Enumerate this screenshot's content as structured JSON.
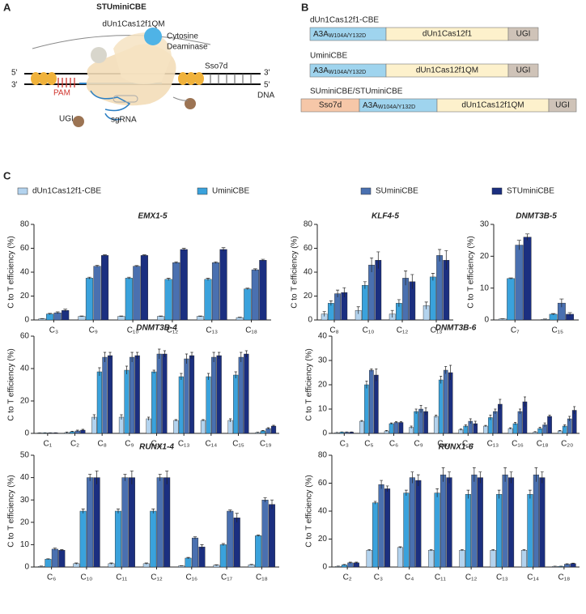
{
  "panel_a": {
    "label": "A",
    "title": "STUminiCBE",
    "cas": "dUn1Cas12f1QM",
    "deaminase": [
      "Cytosine",
      "Deaminase"
    ],
    "sso7d": "Sso7d",
    "strand_ends": [
      "5'",
      "3'",
      "3'",
      "5'"
    ],
    "pam": "PAM",
    "dna": "DNA",
    "ugi": "UGI",
    "sgrna": "sgRNA"
  },
  "panel_b": {
    "label": "B",
    "constructs": [
      {
        "name": "dUn1Cas12f1-CBE",
        "domains": [
          {
            "text": "A3A",
            "sub": "W104A/Y132D",
            "color": "#9fd4ee"
          },
          {
            "text": "dUn1Cas12f1",
            "color": "#fdf1cc"
          },
          {
            "text": "UGI",
            "color": "#cfc3b8"
          }
        ]
      },
      {
        "name": "UminiCBE",
        "domains": [
          {
            "text": "A3A",
            "sub": "W104A/Y132D",
            "color": "#9fd4ee"
          },
          {
            "text": "dUn1Cas12f1QM",
            "color": "#fdf1cc"
          },
          {
            "text": "UGI",
            "color": "#cfc3b8"
          }
        ]
      },
      {
        "name": "SUminiCBE/STUminiCBE",
        "domains": [
          {
            "text": "Sso7d",
            "color": "#f6c7a8"
          },
          {
            "text": "A3A",
            "sub": "W104A/Y132D",
            "color": "#9fd4ee"
          },
          {
            "text": "dUn1Cas12f1QM",
            "color": "#fdf1cc"
          },
          {
            "text": "UGI",
            "color": "#cfc3b8"
          }
        ]
      }
    ]
  },
  "panel_c": {
    "label": "C"
  },
  "legend": [
    {
      "name": "dUn1Cas12f1-CBE",
      "color": "#b3d3ee"
    },
    {
      "name": "UminiCBE",
      "color": "#3aa2dc"
    },
    {
      "name": "SUminiCBE",
      "color": "#4a70b0"
    },
    {
      "name": "STUminiCBE",
      "color": "#1b2f80"
    }
  ],
  "chart_data": [
    {
      "type": "bar",
      "title": "EMX1-5",
      "ylabel": "C to T efficiency (%)",
      "ylim": [
        0,
        80
      ],
      "yticks": [
        0,
        20,
        40,
        60,
        80
      ],
      "categories": [
        "C₃",
        "C₉",
        "C₁₀",
        "C₁₂",
        "C₁₃",
        "C₁₈"
      ],
      "series": [
        {
          "values": [
            1,
            3,
            3,
            3,
            3,
            2
          ],
          "errors": [
            0.2,
            0.3,
            0.3,
            0.3,
            0.3,
            0.3
          ]
        },
        {
          "values": [
            5,
            35,
            35,
            34,
            34,
            26
          ],
          "errors": [
            0.5,
            0.8,
            0.8,
            1,
            1,
            0.6
          ]
        },
        {
          "values": [
            6,
            45,
            45,
            48,
            48,
            42
          ],
          "errors": [
            0.8,
            0.8,
            0.5,
            0.7,
            0.7,
            0.8
          ]
        },
        {
          "values": [
            8,
            54,
            54,
            59,
            59,
            50
          ],
          "errors": [
            1,
            0.5,
            0.5,
            1,
            1.5,
            0.8
          ]
        }
      ]
    },
    {
      "type": "bar",
      "title": "KLF4-5",
      "ylabel": "C to T efficiency (%)",
      "ylim": [
        0,
        80
      ],
      "yticks": [
        0,
        20,
        40,
        60,
        80
      ],
      "categories": [
        "C₈",
        "C₁₀",
        "C₁₂",
        "C₁₃"
      ],
      "series": [
        {
          "values": [
            5,
            8,
            5,
            12
          ],
          "errors": [
            2,
            3,
            3,
            3
          ]
        },
        {
          "values": [
            14,
            29,
            14,
            36
          ],
          "errors": [
            2,
            3,
            3,
            3
          ]
        },
        {
          "values": [
            22,
            46,
            35,
            54
          ],
          "errors": [
            3,
            6,
            6,
            5
          ]
        },
        {
          "values": [
            23,
            50,
            32,
            50
          ],
          "errors": [
            4,
            7,
            6,
            8
          ]
        }
      ]
    },
    {
      "type": "bar",
      "title": "DNMT3B-5",
      "ylabel": "C to T efficiency (%)",
      "ylim": [
        0,
        30
      ],
      "yticks": [
        0,
        10,
        20,
        30
      ],
      "categories": [
        "C₇",
        "C₁₅"
      ],
      "series": [
        {
          "values": [
            0.3,
            0.2
          ],
          "errors": [
            0.1,
            0.1
          ]
        },
        {
          "values": [
            13,
            1.8
          ],
          "errors": [
            0.2,
            0.2
          ]
        },
        {
          "values": [
            23.5,
            5.3
          ],
          "errors": [
            1.5,
            1.3
          ]
        },
        {
          "values": [
            26,
            1.8
          ],
          "errors": [
            1,
            0.5
          ]
        }
      ]
    },
    {
      "type": "bar",
      "title": "DNMT3B-4",
      "ylabel": "C to T efficiency (%)",
      "ylim": [
        0,
        60
      ],
      "yticks": [
        0,
        20,
        40,
        60
      ],
      "categories": [
        "C₁",
        "C₂",
        "C₈",
        "C₉",
        "C₁₁",
        "C₁₃",
        "C₁₄",
        "C₁₅",
        "C₁₉"
      ],
      "series": [
        {
          "values": [
            0.3,
            0.5,
            10,
            10,
            9,
            8,
            8,
            8,
            0.5
          ],
          "errors": [
            0.1,
            0.3,
            1.5,
            1.5,
            1,
            0.5,
            0.5,
            1,
            0.2
          ]
        },
        {
          "values": [
            0.3,
            1,
            38,
            39,
            38,
            35,
            35,
            36,
            1.5
          ],
          "errors": [
            0.1,
            0.3,
            2.5,
            2.5,
            1,
            2,
            2,
            2,
            0.3
          ]
        },
        {
          "values": [
            0.3,
            1.5,
            47,
            47,
            49,
            46,
            47,
            47,
            3
          ],
          "errors": [
            0.1,
            0.5,
            3,
            3,
            3,
            3,
            3,
            3,
            0.5
          ]
        },
        {
          "values": [
            0.3,
            2,
            48,
            48,
            49,
            48,
            48,
            49,
            4.5
          ],
          "errors": [
            0.1,
            0.5,
            2,
            2,
            2,
            2,
            2,
            2,
            0.5
          ]
        }
      ]
    },
    {
      "type": "bar",
      "title": "DNMT3B-6",
      "ylabel": "C to T efficiency (%)",
      "ylim": [
        0,
        40
      ],
      "yticks": [
        0,
        10,
        20,
        30,
        40
      ],
      "categories": [
        "C₃",
        "C₅",
        "C₆",
        "C₉",
        "C₁₀",
        "C₁₂",
        "C₁₃",
        "C₁₆",
        "C₁₈",
        "C₂₀"
      ],
      "series": [
        {
          "values": [
            0.3,
            5,
            1,
            2.5,
            7,
            1.5,
            3,
            2,
            0.5,
            1
          ],
          "errors": [
            0.1,
            0.3,
            0.2,
            0.5,
            0.5,
            0.3,
            0.3,
            0.3,
            0.2,
            0.2
          ]
        },
        {
          "values": [
            0.5,
            20,
            4,
            9,
            22,
            3,
            6.5,
            4,
            2,
            3
          ],
          "errors": [
            0.1,
            1.5,
            0.3,
            1,
            1.5,
            0.5,
            1,
            0.5,
            0.5,
            0.5
          ]
        },
        {
          "values": [
            0.5,
            26,
            4.5,
            10,
            26,
            5,
            9,
            9,
            3.5,
            6
          ],
          "errors": [
            0.1,
            0.5,
            0.3,
            1.5,
            1.5,
            1,
            1,
            1,
            0.8,
            1
          ]
        },
        {
          "values": [
            0.5,
            24,
            4.5,
            9,
            25,
            4,
            12,
            13,
            7,
            9.5
          ],
          "errors": [
            0.1,
            2.5,
            0.3,
            1.5,
            3,
            1,
            2,
            2,
            0.5,
            1.5
          ]
        }
      ]
    },
    {
      "type": "bar",
      "title": "RUNX1-4",
      "ylabel": "C to T efficiency (%)",
      "ylim": [
        0,
        50
      ],
      "yticks": [
        0,
        10,
        20,
        30,
        40,
        50
      ],
      "categories": [
        "C₆",
        "C₁₀",
        "C₁₁",
        "C₁₂",
        "C₁₆",
        "C₁₇",
        "C₁₈"
      ],
      "series": [
        {
          "values": [
            0.3,
            1.5,
            1.5,
            1.5,
            0.5,
            0.8,
            1
          ],
          "errors": [
            0.1,
            0.3,
            0.3,
            0.3,
            0.1,
            0.2,
            0.2
          ]
        },
        {
          "values": [
            3.5,
            25,
            25,
            25,
            4,
            10,
            14
          ],
          "errors": [
            0.2,
            1,
            1,
            1,
            0.3,
            0.5,
            0.3
          ]
        },
        {
          "values": [
            8,
            40,
            40,
            40,
            13,
            25,
            30
          ],
          "errors": [
            0.5,
            1.5,
            1.5,
            1.5,
            0.5,
            0.5,
            1
          ]
        },
        {
          "values": [
            7.5,
            40,
            40,
            40,
            9,
            22,
            28
          ],
          "errors": [
            0.3,
            3,
            3,
            3,
            1,
            2,
            2
          ]
        }
      ]
    },
    {
      "type": "bar",
      "title": "RUNX1-6",
      "ylabel": "C to T efficiency (%)",
      "ylim": [
        0,
        80
      ],
      "yticks": [
        0,
        20,
        40,
        60,
        80
      ],
      "categories": [
        "C₂",
        "C₃",
        "C₄",
        "C₁₁",
        "C₁₂",
        "C₁₃",
        "C₁₄",
        "C₁₈"
      ],
      "series": [
        {
          "values": [
            0.5,
            12,
            14,
            12,
            12,
            12,
            12,
            0.5
          ],
          "errors": [
            0.2,
            0.5,
            0.5,
            0.5,
            0.5,
            0.5,
            0.5,
            0.1
          ]
        },
        {
          "values": [
            1.5,
            46,
            53,
            53,
            52,
            52,
            52,
            0.5
          ],
          "errors": [
            0.3,
            1,
            2,
            3,
            3,
            3,
            3,
            0.1
          ]
        },
        {
          "values": [
            3,
            59,
            64,
            66,
            66,
            66,
            66,
            2
          ],
          "errors": [
            0.5,
            3,
            4,
            5,
            5,
            5,
            5,
            0.3
          ]
        },
        {
          "values": [
            3,
            56,
            62,
            64,
            64,
            64,
            64,
            2.5
          ],
          "errors": [
            0.5,
            2,
            4,
            4,
            4,
            4,
            4,
            0.3
          ]
        }
      ]
    }
  ]
}
